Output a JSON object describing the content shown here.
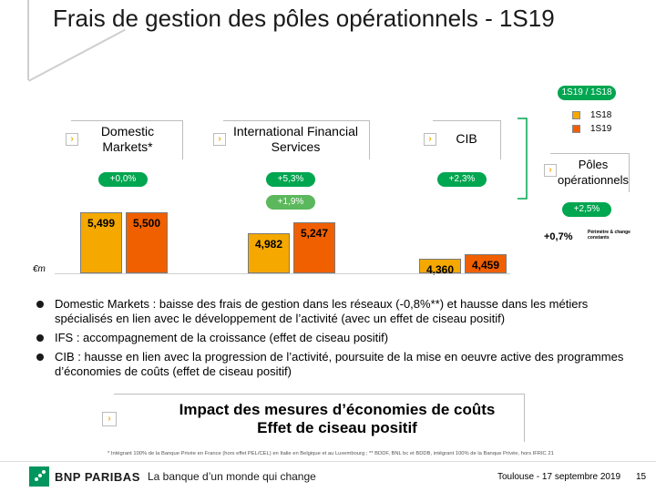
{
  "title": "Frais de gestion des pôles opérationnels - 1S19",
  "header_badge": "1S19 / 1S18",
  "legend": [
    {
      "label": "1S18",
      "color": "#f5a800"
    },
    {
      "label": "1S19",
      "color": "#f06000"
    }
  ],
  "unit_label": "€m",
  "sections": {
    "dm": {
      "label": "Domestic Markets*",
      "growth": "+0,0%"
    },
    "ifs": {
      "label": "International Financial Services",
      "growth": "+5,3%",
      "growth_cst": "+1,9%"
    },
    "cib": {
      "label": "CIB",
      "growth": "+2,3%"
    },
    "poles": {
      "label": "Pôles opérationnels",
      "growth": "+2,5%",
      "growth_cst": "+0,7%",
      "growth_cst_note": "Périmètre & change constants"
    }
  },
  "chart_data": {
    "type": "bar",
    "categories": [
      "Domestic Markets*",
      "International Financial Services",
      "CIB"
    ],
    "series": [
      {
        "name": "1S18",
        "values": [
          5499,
          4982,
          4360
        ],
        "labels": [
          "5,499",
          "4,982",
          "4,360"
        ],
        "color": "#f5a800"
      },
      {
        "name": "1S19",
        "values": [
          5500,
          5247,
          4459
        ],
        "labels": [
          "5,500",
          "5,247",
          "4,459"
        ],
        "color": "#f06000"
      }
    ],
    "ylabel": "€m",
    "title": "Frais de gestion des pôles opérationnels - 1S19"
  },
  "bullets": [
    "Domestic Markets : baisse des frais de gestion dans les réseaux (-0,8%**) et hausse dans les métiers spécialisés en lien avec le développement de l’activité (avec un effet de ciseau positif)",
    "IFS : accompagnement de la croissance (effet de ciseau positif)",
    "CIB : hausse en lien avec la progression de l’activité, poursuite de la mise en oeuvre active des programmes d’économies de coûts (effet de ciseau positif)"
  ],
  "impact": {
    "line1": "Impact des mesures d’économies de coûts",
    "line2": "Effet de ciseau positif"
  },
  "footnote": "* Intégrant 100% de la Banque Privée en France (hors effet PEL/CEL) en Italie en Belgique et au Luxembourg ; ** BDDF, BNL bc et BDDB, intégrant 100% de la Banque Privée, hors IFRIC 21",
  "footer": {
    "brand": "BNP PARIBAS",
    "tagline": "La banque d’un monde qui change",
    "event": "Toulouse - 17 septembre 2019",
    "page": "15"
  },
  "colors": {
    "accent_green": "#00a650",
    "arrow_orange": "#f2a900"
  }
}
